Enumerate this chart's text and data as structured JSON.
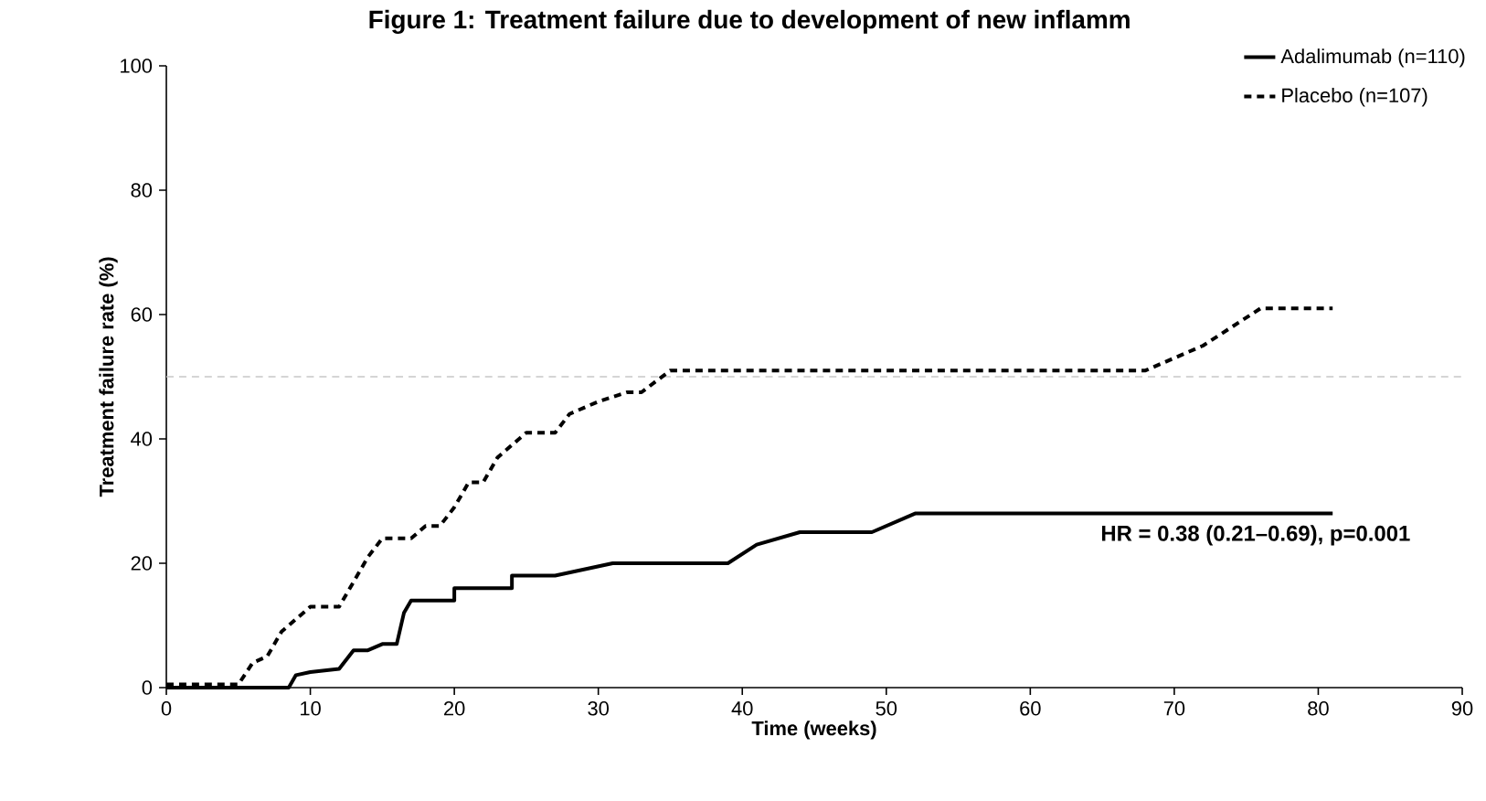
{
  "chart_data": {
    "type": "line",
    "title": "Figure 1: Treatment failure due to development of new inflamm",
    "xlabel": "Time (weeks)",
    "ylabel": "Treatment failure rate (%)",
    "series": [
      {
        "name": "Adalimumab (n=110)",
        "color": "#000000",
        "line_style": "solid",
        "x": [
          0,
          8.5,
          9,
          10,
          12,
          13,
          14,
          15,
          16,
          16.5,
          17,
          20,
          20,
          24,
          24,
          27,
          31,
          39,
          41,
          44,
          49,
          52,
          81
        ],
        "values": [
          0,
          0,
          2,
          2.5,
          3,
          6,
          6,
          7,
          7,
          12,
          14,
          14,
          16,
          16,
          18,
          18,
          20,
          20,
          23,
          25,
          25,
          28,
          28
        ]
      },
      {
        "name": "Placebo (n=107)",
        "color": "#000000",
        "line_style": "dashed",
        "x": [
          0,
          5,
          6,
          7,
          8,
          9,
          10,
          12,
          13,
          14,
          15,
          17,
          18,
          19,
          20,
          21,
          22,
          23,
          24,
          25,
          27,
          28,
          30,
          32,
          33,
          35,
          68,
          72,
          76,
          81
        ],
        "values": [
          0.5,
          0.5,
          4,
          5,
          9,
          11,
          13,
          13,
          17,
          21,
          24,
          24,
          26,
          26,
          29,
          33,
          33,
          37,
          39,
          41,
          41,
          44,
          46,
          47.5,
          47.5,
          51,
          51,
          55,
          61,
          61
        ]
      }
    ],
    "xlim": [
      0,
      90
    ],
    "xticks": [
      0,
      10,
      20,
      30,
      40,
      50,
      60,
      70,
      80,
      90
    ],
    "ylim": [
      0,
      100
    ],
    "yticks": [
      0,
      20,
      40,
      60,
      80,
      100
    ],
    "ref_lines": [
      {
        "axis": "y",
        "value": 50,
        "color": "#c8c8c8",
        "line_style": "dashed"
      }
    ],
    "annotations": [
      "HR = 0.38 (0.21–0.69), p=0.001"
    ],
    "grid": false,
    "legend": "top right",
    "marker": "none"
  }
}
